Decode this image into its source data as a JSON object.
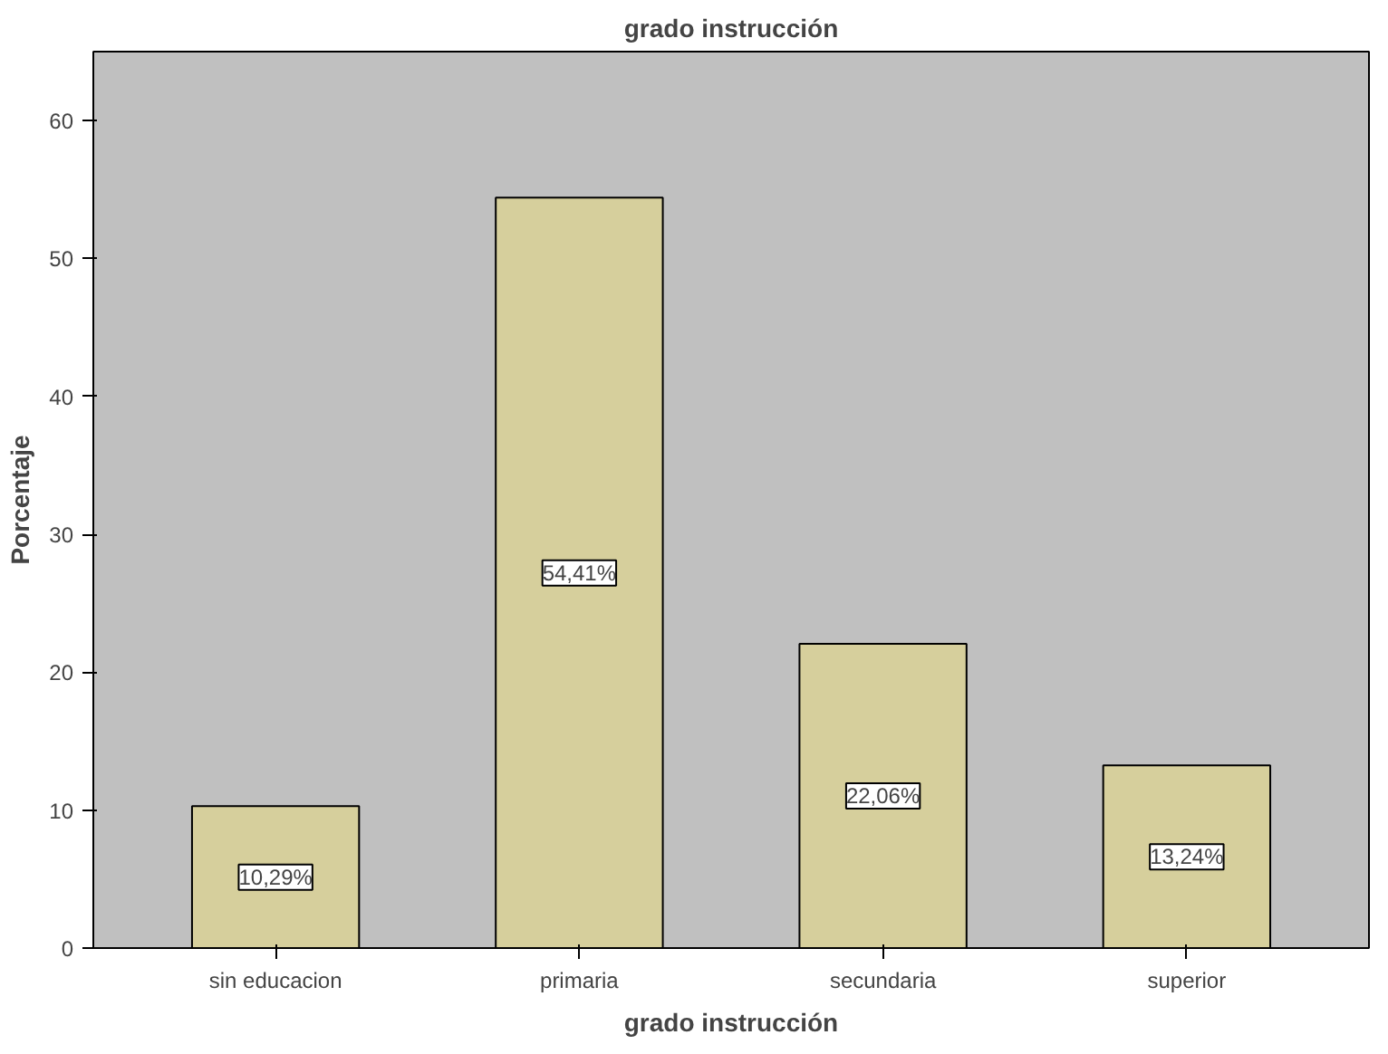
{
  "chart_data": {
    "type": "bar",
    "title": "grado instrucción",
    "xlabel": "grado instrucción",
    "ylabel": "Porcentaje",
    "categories": [
      "sin educacion",
      "primaria",
      "secundaria",
      "superior"
    ],
    "values": [
      10.29,
      54.41,
      22.06,
      13.24
    ],
    "value_labels": [
      "10,29%",
      "54,41%",
      "22,06%",
      "13,24%"
    ],
    "color": "#d6cf9c",
    "ylim": [
      0,
      65
    ],
    "yticks": [
      0,
      10,
      20,
      30,
      40,
      50,
      60
    ],
    "grid": false
  }
}
